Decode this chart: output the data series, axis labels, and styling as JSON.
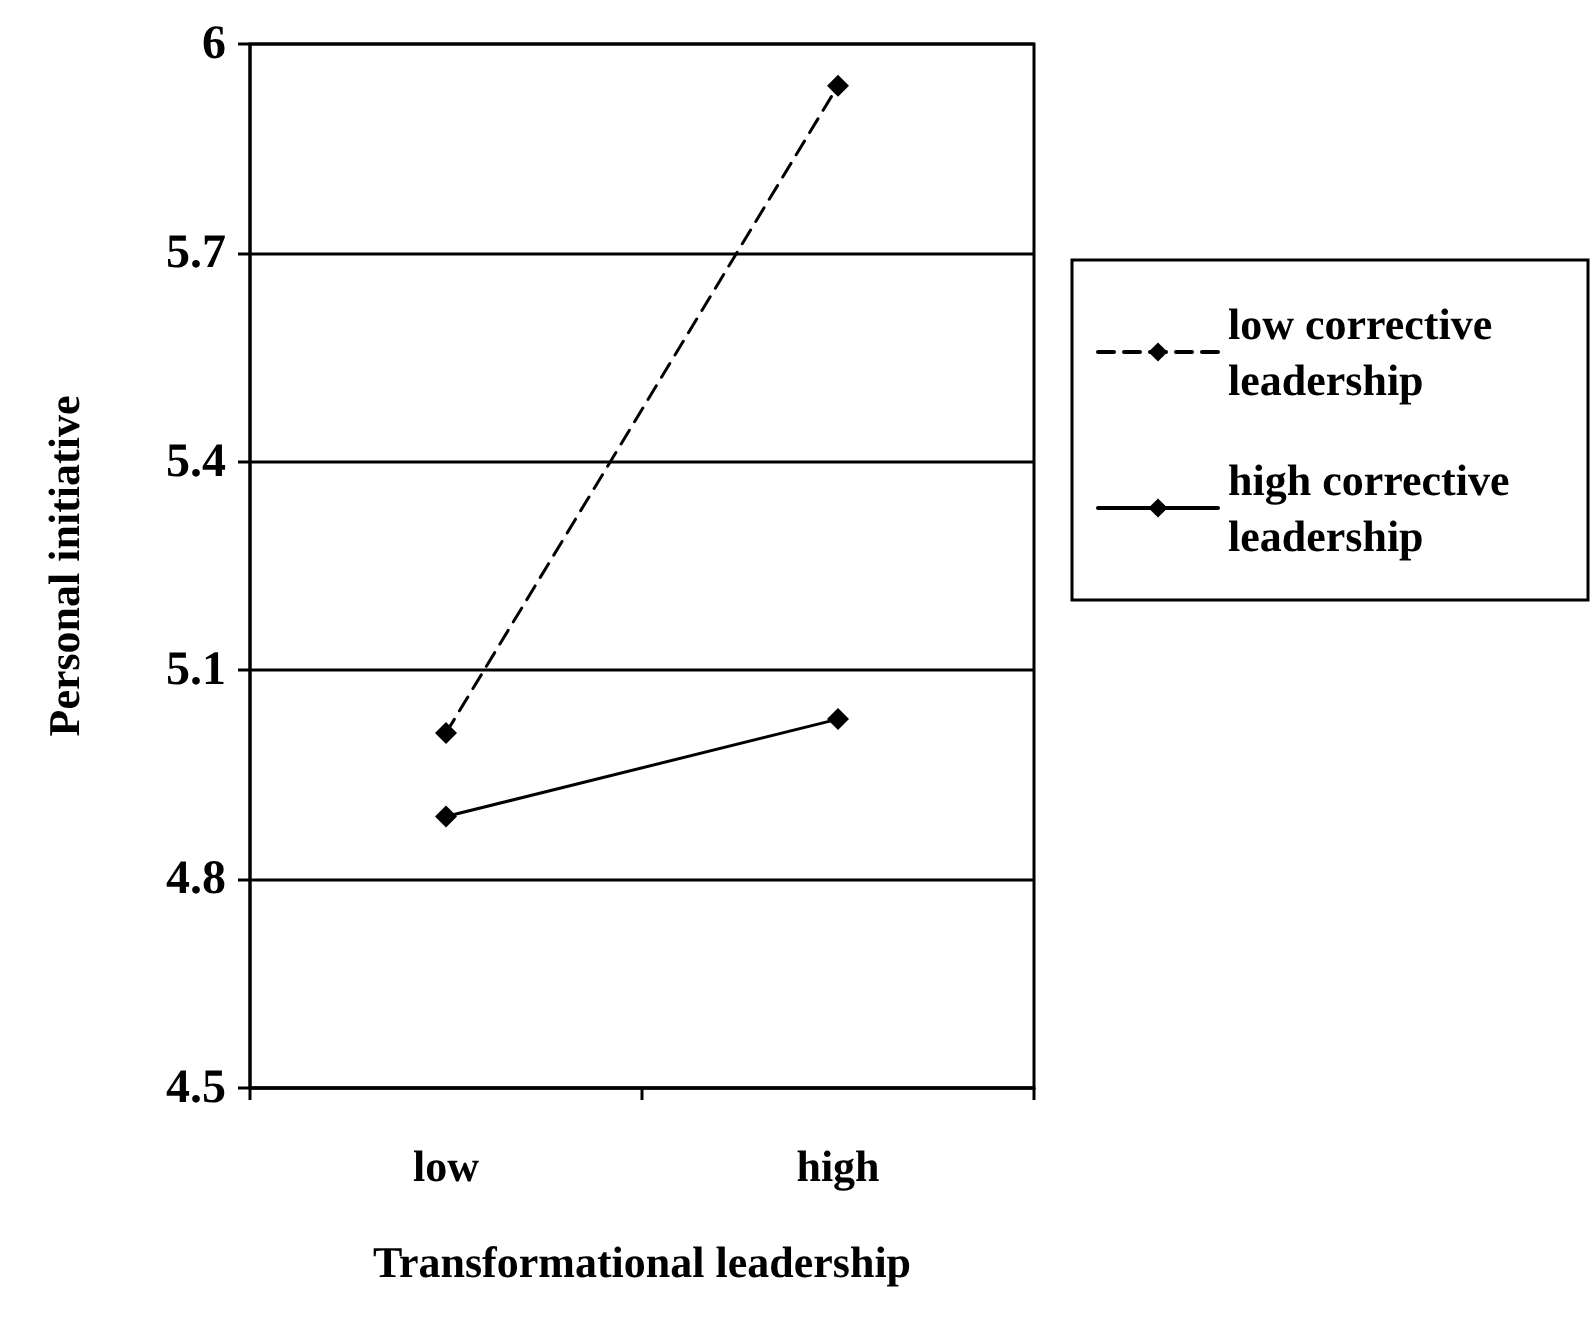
{
  "chart_data": {
    "type": "line",
    "xlabel": "Transformational leadership",
    "ylabel": "Personal initiative",
    "categories": [
      "low",
      "high"
    ],
    "series": [
      {
        "name": "low corrective leadership",
        "color": "#000000",
        "values": [
          5.01,
          5.94
        ],
        "line_style": "dashed"
      },
      {
        "name": "high corrective leadership",
        "color": "#000000",
        "values": [
          4.89,
          5.03
        ],
        "line_style": "solid"
      }
    ],
    "ylim": [
      4.5,
      6
    ],
    "yticks": [
      4.5,
      4.8,
      5.1,
      5.4,
      5.7,
      6
    ],
    "grid": "y",
    "legend": "right",
    "marker": "diamond"
  }
}
